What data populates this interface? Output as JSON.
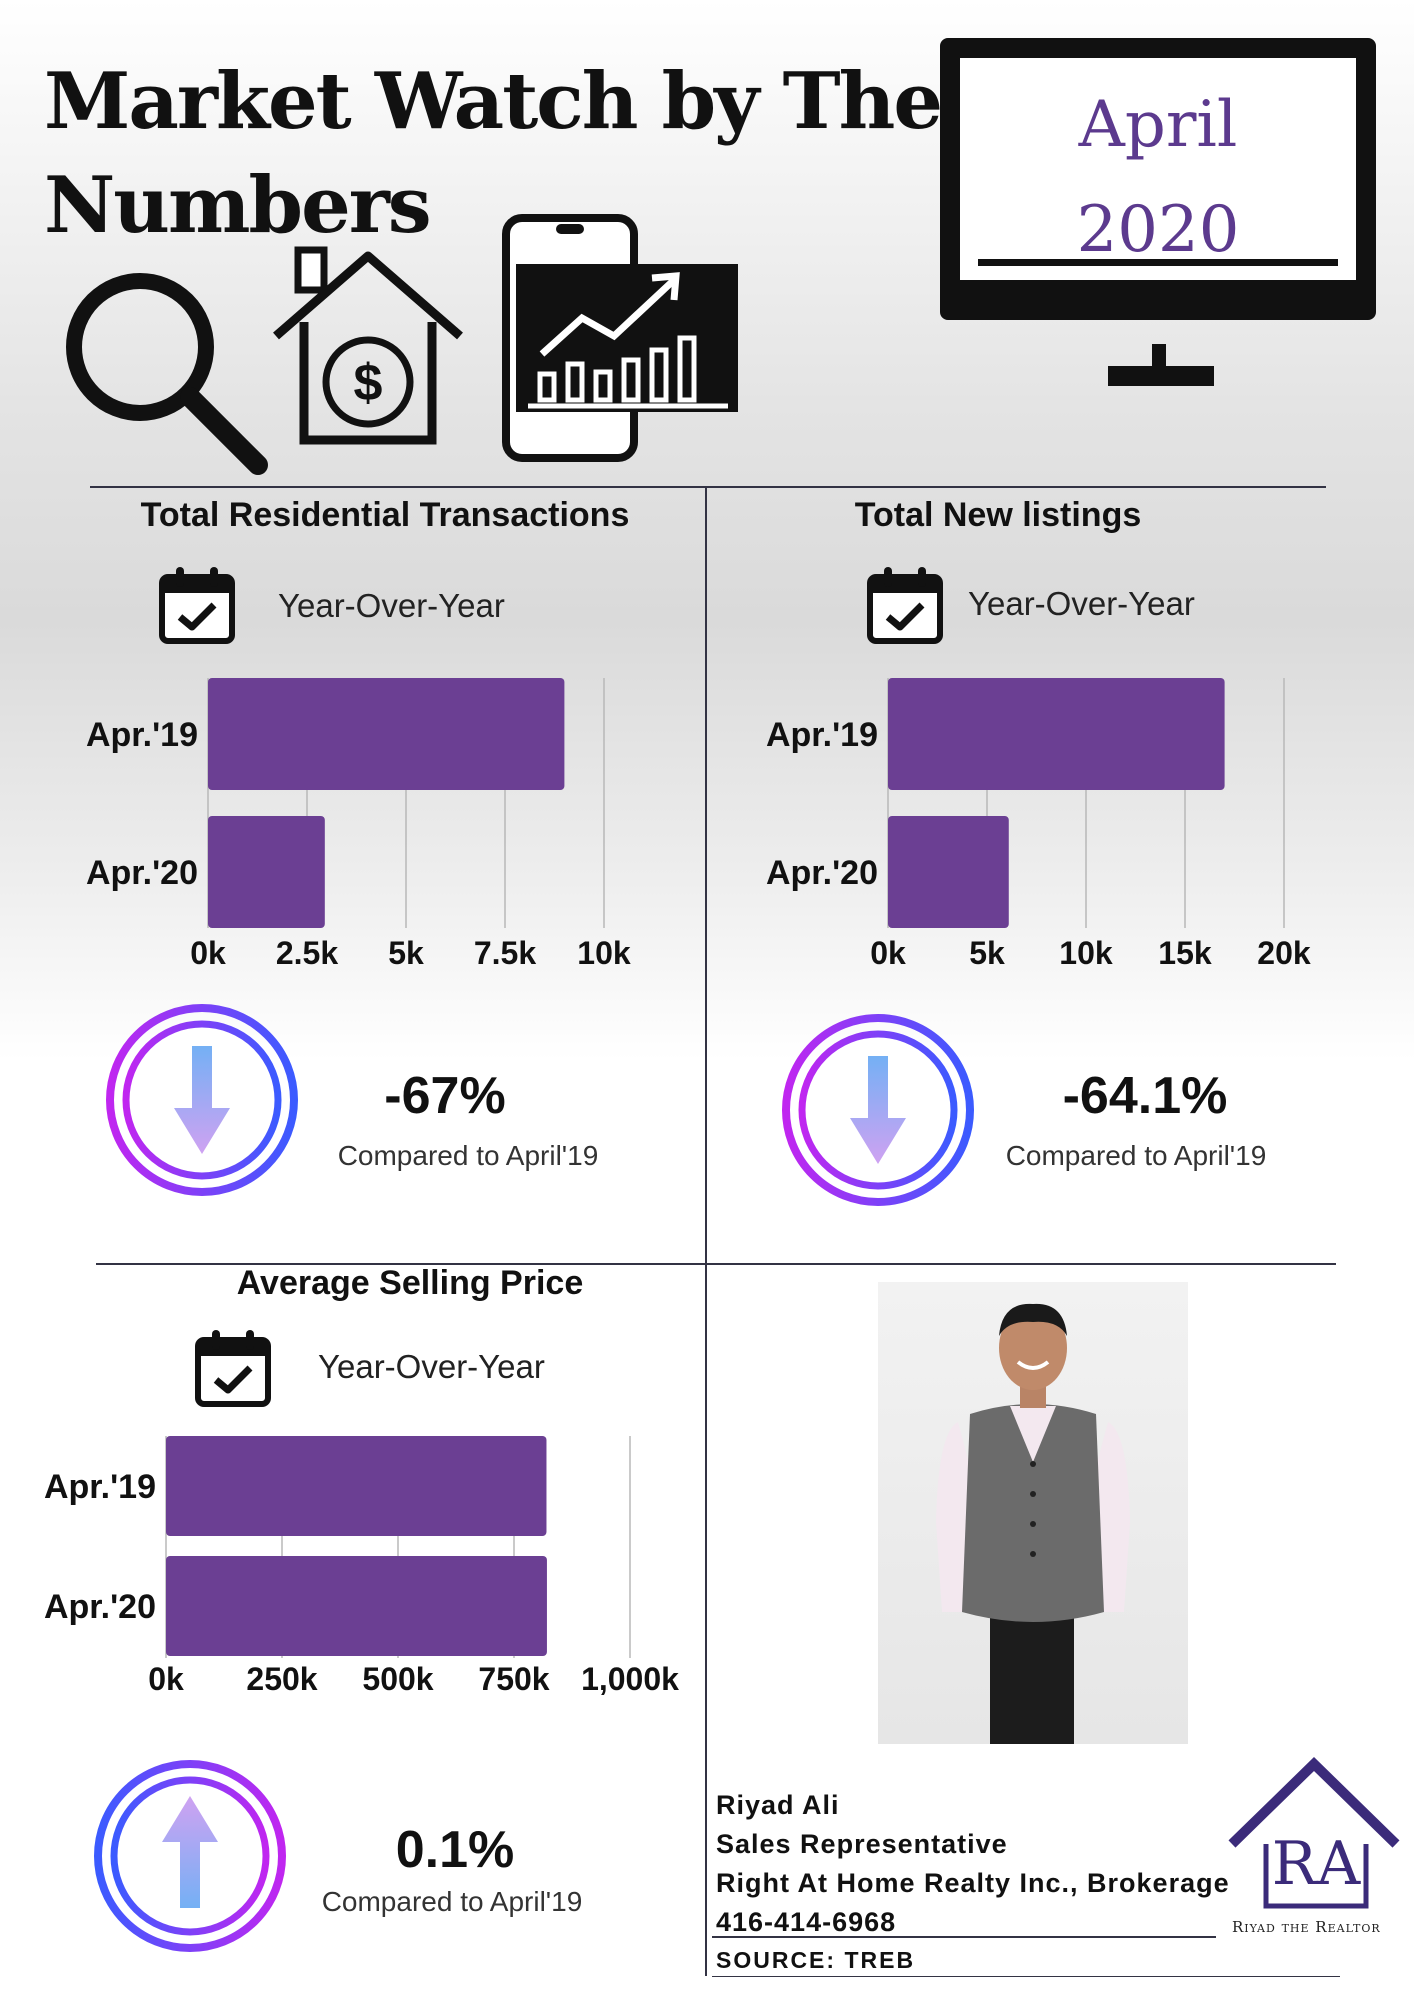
{
  "header": {
    "title_line1": "Market Watch by The",
    "title_line2": "Numbers",
    "month": "April",
    "year": "2020"
  },
  "colors": {
    "bar": "#6b3f93",
    "accent_purple": "#5c3a8e",
    "ring_start": "#3b5bff",
    "ring_end": "#c026f0"
  },
  "icons": [
    "magnifier-icon",
    "house-dollar-icon",
    "phone-chart-icon",
    "monitor-icon",
    "calendar-check-icon",
    "arrow-down-icon",
    "arrow-up-icon",
    "brand-logo-icon"
  ],
  "sections": {
    "transactions": {
      "title": "Total Residential Transactions",
      "yoy": "Year-Over-Year",
      "pct": "-67%",
      "compare": "Compared to April'19"
    },
    "listings": {
      "title": "Total New listings",
      "yoy": "Year-Over-Year",
      "pct": "-64.1%",
      "compare": "Compared to April'19"
    },
    "price": {
      "title": "Average Selling Price",
      "yoy": "Year-Over-Year",
      "pct": "0.1%",
      "compare": "Compared to April'19"
    }
  },
  "chart_data": [
    {
      "type": "bar",
      "orientation": "horizontal",
      "title": "Total Residential Transactions",
      "categories": [
        "Apr.'19",
        "Apr.'20"
      ],
      "values": [
        9000,
        2950
      ],
      "xlim": [
        0,
        10000
      ],
      "xticks": [
        "0k",
        "2.5k",
        "5k",
        "7.5k",
        "10k"
      ],
      "grid": true
    },
    {
      "type": "bar",
      "orientation": "horizontal",
      "title": "Total New listings",
      "categories": [
        "Apr.'19",
        "Apr.'20"
      ],
      "values": [
        17000,
        6100
      ],
      "xlim": [
        0,
        20000
      ],
      "xticks": [
        "0k",
        "5k",
        "10k",
        "15k",
        "20k"
      ],
      "grid": true
    },
    {
      "type": "bar",
      "orientation": "horizontal",
      "title": "Average Selling Price",
      "categories": [
        "Apr.'19",
        "Apr.'20"
      ],
      "values": [
        820000,
        821000
      ],
      "xlim": [
        0,
        1000000
      ],
      "xticks": [
        "0k",
        "250k",
        "500k",
        "750k",
        "1,000k"
      ],
      "grid": true
    }
  ],
  "contact": {
    "name": "Riyad Ali",
    "role": "Sales Representative",
    "brokerage": "Right At Home Realty Inc., Brokerage",
    "phone": "416-414-6968",
    "source": "SOURCE: TREB"
  },
  "logo": {
    "monogram": "RA",
    "caption": "Riyad the Realtor"
  }
}
